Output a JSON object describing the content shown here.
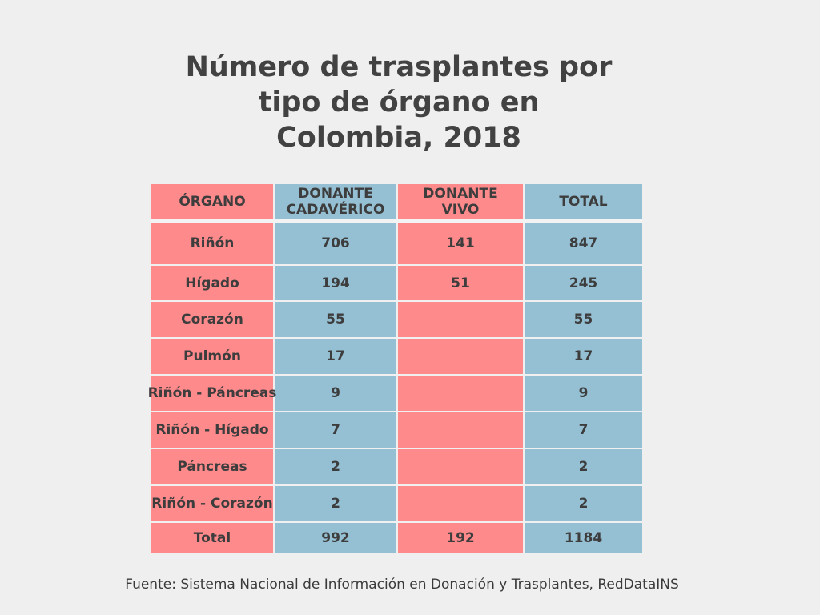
{
  "title": {
    "line1": "Número de trasplantes por",
    "line2": "tipo de órgano en",
    "line3": "Colombia, 2018"
  },
  "source": "Fuente: Sistema Nacional de Información en Donación y Trasplantes, RedDataINS",
  "colors": {
    "background": "#efefef",
    "pink": "#fe8a8c",
    "blue": "#95c0d3"
  },
  "chart_data": {
    "type": "table",
    "title": "Número de trasplantes por tipo de órgano en Colombia, 2018",
    "headers": [
      {
        "line1": "ÓRGANO",
        "line2": ""
      },
      {
        "line1": "DONANTE",
        "line2": "CADAVÉRICO"
      },
      {
        "line1": "DONANTE",
        "line2": "VIVO"
      },
      {
        "line1": "TOTAL",
        "line2": ""
      }
    ],
    "rows": [
      {
        "organ": "Riñón",
        "cadaveric": "706",
        "living": "141",
        "total": "847"
      },
      {
        "organ": "Hígado",
        "cadaveric": "194",
        "living": "51",
        "total": "245"
      },
      {
        "organ": "Corazón",
        "cadaveric": "55",
        "living": "",
        "total": "55"
      },
      {
        "organ": "Pulmón",
        "cadaveric": "17",
        "living": "",
        "total": "17"
      },
      {
        "organ": "Riñón - Páncreas",
        "cadaveric": "9",
        "living": "",
        "total": "9"
      },
      {
        "organ": "Riñón - Hígado",
        "cadaveric": "7",
        "living": "",
        "total": "7"
      },
      {
        "organ": "Páncreas",
        "cadaveric": "2",
        "living": "",
        "total": "2"
      },
      {
        "organ": "Riñón - Corazón",
        "cadaveric": "2",
        "living": "",
        "total": "2"
      }
    ],
    "total_row": {
      "organ": "Total",
      "cadaveric": "992",
      "living": "192",
      "total": "1184"
    }
  }
}
